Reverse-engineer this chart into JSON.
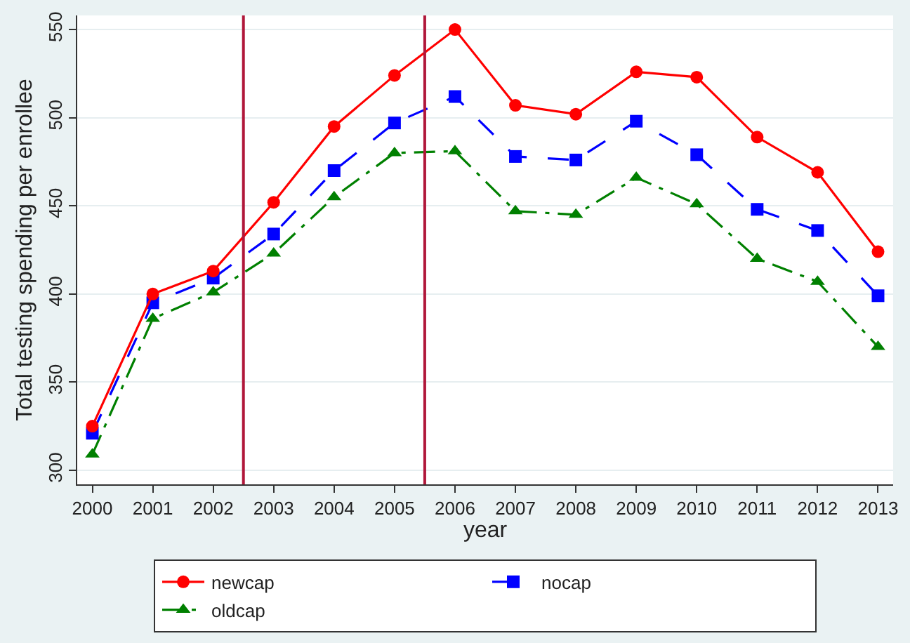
{
  "chart_data": {
    "type": "line",
    "xlabel": "year",
    "ylabel": "Total testing spending per enrollee",
    "x": [
      2000,
      2001,
      2002,
      2003,
      2004,
      2005,
      2006,
      2007,
      2008,
      2009,
      2010,
      2011,
      2012,
      2013
    ],
    "series": [
      {
        "name": "newcap",
        "color": "#ff0000",
        "marker": "circle",
        "line_style": "solid",
        "values": [
          325,
          400,
          413,
          452,
          495,
          524,
          550,
          507,
          502,
          526,
          523,
          489,
          469,
          424
        ]
      },
      {
        "name": "nocap",
        "color": "#0000ff",
        "marker": "square",
        "line_style": "dashed",
        "values": [
          321,
          395,
          409,
          434,
          470,
          497,
          512,
          478,
          476,
          498,
          479,
          448,
          436,
          399
        ]
      },
      {
        "name": "oldcap",
        "color": "#008000",
        "marker": "triangle",
        "line_style": "dashdot",
        "values": [
          309,
          386,
          401,
          423,
          455,
          480,
          481,
          447,
          445,
          466,
          451,
          420,
          407,
          370
        ]
      }
    ],
    "xlim": [
      1999.75,
      2013.25
    ],
    "ylim": [
      292,
      558
    ],
    "xticks": [
      2000,
      2001,
      2002,
      2003,
      2004,
      2005,
      2006,
      2007,
      2008,
      2009,
      2010,
      2011,
      2012,
      2013
    ],
    "yticks": [
      300,
      350,
      400,
      450,
      500,
      550
    ],
    "ref_lines": [
      {
        "axis": "x",
        "value": 2002.5,
        "label": null,
        "color": "#b0173a"
      },
      {
        "axis": "x",
        "value": 2005.5,
        "label": null,
        "color": "#b0173a"
      }
    ],
    "grid": "y",
    "legend": "bottom"
  }
}
